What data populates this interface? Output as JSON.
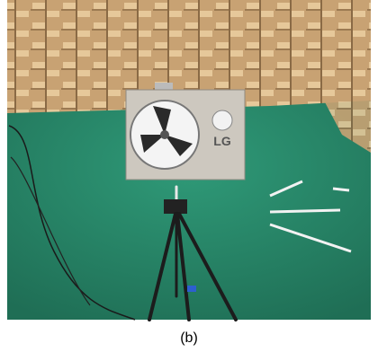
{
  "photo": {
    "logo": "LG"
  },
  "caption": "(b)"
}
